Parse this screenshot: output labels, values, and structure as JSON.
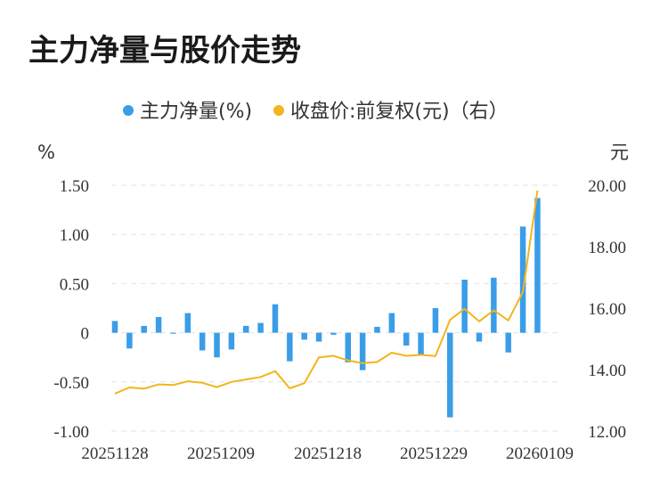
{
  "chart_data": {
    "type": "bar",
    "title": "主力净量与股价走势",
    "legend": [
      {
        "name": "主力净量(%)",
        "color": "#3a9de8"
      },
      {
        "name": "收盘价:前复权(元)（右）",
        "color": "#f2b51c"
      }
    ],
    "left_unit": "%",
    "right_unit": "元",
    "left_ticks": [
      "1.50",
      "1.00",
      "0.50",
      "0",
      "-0.50",
      "-1.00"
    ],
    "right_ticks": [
      "20.00",
      "18.00",
      "16.00",
      "14.00",
      "12.00"
    ],
    "x_ticks": [
      "20251128",
      "20251209",
      "20251218",
      "20251229",
      "20260109"
    ],
    "ylim_left": [
      -1.0,
      1.5
    ],
    "ylim_right": [
      12.0,
      20.0
    ],
    "grid": true,
    "series": [
      {
        "name": "主力净量(%)",
        "type": "bar",
        "values": [
          0.12,
          -0.16,
          0.07,
          0.16,
          -0.01,
          0.2,
          -0.18,
          -0.25,
          -0.17,
          0.07,
          0.1,
          0.29,
          -0.29,
          -0.07,
          -0.09,
          -0.02,
          -0.3,
          -0.38,
          0.06,
          0.2,
          -0.13,
          -0.23,
          0.25,
          -0.86,
          0.54,
          -0.09,
          0.56,
          -0.2,
          1.08,
          1.37
        ]
      },
      {
        "name": "收盘价:前复权(元)（右）",
        "type": "line",
        "values": [
          13.22,
          13.42,
          13.38,
          13.52,
          13.5,
          13.62,
          13.57,
          13.43,
          13.6,
          13.68,
          13.76,
          13.95,
          13.39,
          13.56,
          14.4,
          14.45,
          14.3,
          14.21,
          14.25,
          14.55,
          14.45,
          14.48,
          14.44,
          15.62,
          15.98,
          15.57,
          15.93,
          15.6,
          16.53,
          19.83
        ]
      }
    ]
  }
}
